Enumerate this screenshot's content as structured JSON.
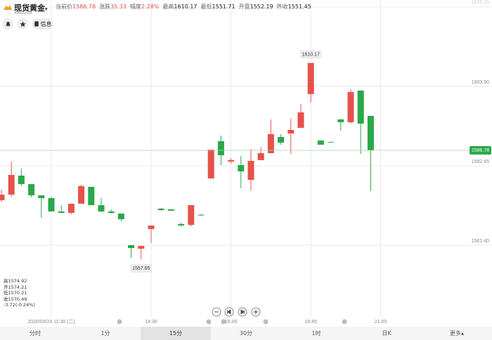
{
  "header": {
    "title": "现货黄金",
    "symbol": "XAUUSD",
    "stats": [
      {
        "label": "当前价",
        "value": "1586.78",
        "color": "#e5534b"
      },
      {
        "label": "涨跌",
        "value": "35.33",
        "color": "#e5534b"
      },
      {
        "label": "幅度",
        "value": "2.28%",
        "color": "#e5534b"
      },
      {
        "label": "最高",
        "value": "1610.17",
        "color": "#222"
      },
      {
        "label": "最低",
        "value": "1551.71",
        "color": "#222"
      },
      {
        "label": "开盘",
        "value": "1552.19",
        "color": "#222"
      },
      {
        "label": "昨收",
        "value": "1551.45",
        "color": "#222"
      }
    ],
    "info_button": "信息"
  },
  "info": [
    {
      "label": "高",
      "value": "1574.92"
    },
    {
      "label": "开",
      "value": "1574.21"
    },
    {
      "label": "低",
      "value": "1570.21"
    },
    {
      "label": "收",
      "value": "1570.49"
    },
    {
      "label": "",
      "value": "-3.72(-0.24%)"
    }
  ],
  "tabs": {
    "items": [
      "分时",
      "1分",
      "15分",
      "30分",
      "1时",
      "日K",
      "更多▴"
    ],
    "active": 2
  },
  "chart_data": {
    "type": "candlestick",
    "up_color": "#e5534b",
    "down_color": "#2aa84a",
    "grid": true,
    "ylim": [
      1541.5,
      1627.0
    ],
    "yticks": [
      {
        "value": 1561.4,
        "label": "1561.40"
      },
      1582.65,
      {
        "value": 1603.9,
        "label": "1603.90"
      },
      1625.15
    ],
    "categories": [
      null,
      null,
      null,
      null,
      null,
      "2020/03/24 11:30 (二)",
      null,
      null,
      null,
      null,
      null,
      null,
      null,
      null,
      null,
      "14:30",
      null,
      null,
      null,
      null,
      null,
      null,
      null,
      "16:45",
      null,
      null,
      null,
      null,
      null,
      null,
      null,
      "18:45",
      null,
      null,
      null,
      null,
      null,
      null,
      "21:00"
    ],
    "open": [
      1573.44,
      1574.94,
      1580.02,
      1577.76,
      1574.75,
      1574.0,
      1570.43,
      1570.05,
      1572.5,
      1577.01,
      1572.12,
      1570.43,
      1569.87,
      1561.41,
      1560.47,
      1565.73,
      1571.18,
      1570.99,
      1567.05,
      1566.86,
      1569.55,
      1579.27,
      1589.23,
      1583.78,
      1582.84,
      1578.89,
      1584.15,
      1586.03,
      1590.36,
      1591.3,
      1592.8,
      1601.83,
      1589.42,
      1589.04,
      1595.06,
      1594.31,
      1602.77,
      1596.0,
      null
    ],
    "high": [
      1576.26,
      1583.78,
      1581.9,
      1577.76,
      1574.75,
      1574.38,
      1572.12,
      1572.5,
      1577.57,
      1577.01,
      1574.0,
      1570.99,
      1569.87,
      1561.41,
      1561.22,
      1566.67,
      1571.37,
      1570.99,
      1567.42,
      1572.12,
      1569.68,
      1586.97,
      1590.73,
      1584.72,
      1585.28,
      1587.16,
      1587.54,
      1595.06,
      1591.11,
      1595.25,
      1599.19,
      1610.17,
      1589.42,
      1589.04,
      1595.06,
      1603.14,
      1602.77,
      1596.0,
      null
    ],
    "low": [
      1573.06,
      1574.38,
      1577.2,
      1574.19,
      1568.74,
      1570.43,
      1570.05,
      1569.68,
      1572.5,
      1572.12,
      1570.24,
      1569.87,
      1567.8,
      1558.02,
      1557.65,
      1561.97,
      1570.62,
      1570.62,
      1566.48,
      1566.48,
      1569.3,
      1579.27,
      1582.84,
      1583.21,
      1576.63,
      1576.07,
      1584.15,
      1586.03,
      1588.29,
      1585.85,
      1592.8,
      1599.57,
      1588.29,
      1588.95,
      1592.05,
      1593.93,
      1585.85,
      1575.88,
      null
    ],
    "close": [
      1574.94,
      1580.21,
      1577.76,
      1574.75,
      1574.0,
      1570.43,
      1570.05,
      1572.5,
      1577.2,
      1572.12,
      1570.43,
      1570.05,
      1568.36,
      1560.65,
      1561.22,
      1566.67,
      1570.81,
      1570.62,
      1566.67,
      1572.12,
      1569.49,
      1586.97,
      1585.47,
      1584.15,
      1581.15,
      1583.97,
      1586.03,
      1591.11,
      1588.85,
      1592.24,
      1596.94,
      1610.17,
      1588.29,
      1588.95,
      1594.31,
      1602.39,
      1593.93,
      1586.78,
      null
    ]
  }
}
